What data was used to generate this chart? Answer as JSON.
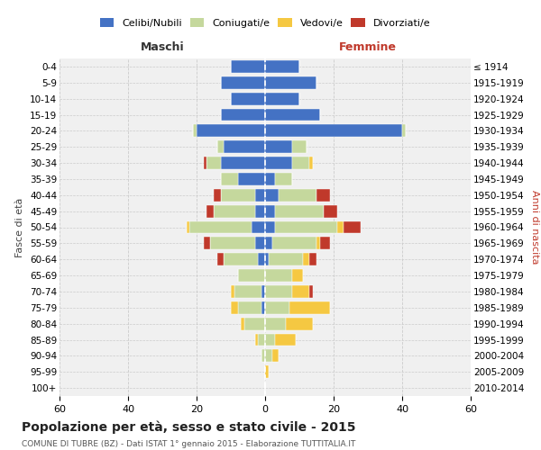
{
  "age_groups": [
    "0-4",
    "5-9",
    "10-14",
    "15-19",
    "20-24",
    "25-29",
    "30-34",
    "35-39",
    "40-44",
    "45-49",
    "50-54",
    "55-59",
    "60-64",
    "65-69",
    "70-74",
    "75-79",
    "80-84",
    "85-89",
    "90-94",
    "95-99",
    "100+"
  ],
  "birth_years": [
    "2010-2014",
    "2005-2009",
    "2000-2004",
    "1995-1999",
    "1990-1994",
    "1985-1989",
    "1980-1984",
    "1975-1979",
    "1970-1974",
    "1965-1969",
    "1960-1964",
    "1955-1959",
    "1950-1954",
    "1945-1949",
    "1940-1944",
    "1935-1939",
    "1930-1934",
    "1925-1929",
    "1920-1924",
    "1915-1919",
    "≤ 1914"
  ],
  "male": {
    "celibi": [
      10,
      13,
      10,
      13,
      20,
      12,
      13,
      8,
      3,
      3,
      4,
      3,
      2,
      0,
      1,
      1,
      0,
      0,
      0,
      0,
      0
    ],
    "coniugati": [
      0,
      0,
      0,
      0,
      1,
      2,
      4,
      5,
      10,
      12,
      18,
      13,
      10,
      8,
      8,
      7,
      6,
      2,
      1,
      0,
      0
    ],
    "vedovi": [
      0,
      0,
      0,
      0,
      0,
      0,
      0,
      0,
      0,
      0,
      1,
      0,
      0,
      0,
      1,
      2,
      1,
      1,
      0,
      0,
      0
    ],
    "divorziati": [
      0,
      0,
      0,
      0,
      0,
      0,
      1,
      0,
      2,
      2,
      0,
      2,
      2,
      0,
      0,
      0,
      0,
      0,
      0,
      0,
      0
    ]
  },
  "female": {
    "nubili": [
      10,
      15,
      10,
      16,
      40,
      8,
      8,
      3,
      4,
      3,
      3,
      2,
      1,
      0,
      0,
      0,
      0,
      0,
      0,
      0,
      0
    ],
    "coniugate": [
      0,
      0,
      0,
      0,
      1,
      4,
      5,
      5,
      11,
      14,
      18,
      13,
      10,
      8,
      8,
      7,
      6,
      3,
      2,
      0,
      0
    ],
    "vedove": [
      0,
      0,
      0,
      0,
      0,
      0,
      1,
      0,
      0,
      0,
      2,
      1,
      2,
      3,
      5,
      12,
      8,
      6,
      2,
      1,
      0
    ],
    "divorziate": [
      0,
      0,
      0,
      0,
      0,
      0,
      0,
      0,
      4,
      4,
      5,
      3,
      2,
      0,
      1,
      0,
      0,
      0,
      0,
      0,
      0
    ]
  },
  "colors": {
    "celibi": "#4472C4",
    "coniugati": "#C5D89D",
    "vedovi": "#F5C842",
    "divorziati": "#C0392B"
  },
  "title": "Popolazione per età, sesso e stato civile - 2015",
  "subtitle": "COMUNE DI TUBRE (BZ) - Dati ISTAT 1° gennaio 2015 - Elaborazione TUTTITALIA.IT",
  "xlabel_left": "Maschi",
  "xlabel_right": "Femmine",
  "ylabel_left": "Fasce di età",
  "ylabel_right": "Anni di nascita",
  "xlim": 60,
  "legend_labels": [
    "Celibi/Nubili",
    "Coniugati/e",
    "Vedovi/e",
    "Divorziati/e"
  ],
  "bg_color": "#FFFFFF",
  "plot_bg": "#F0F0F0",
  "grid_color": "#CCCCCC"
}
